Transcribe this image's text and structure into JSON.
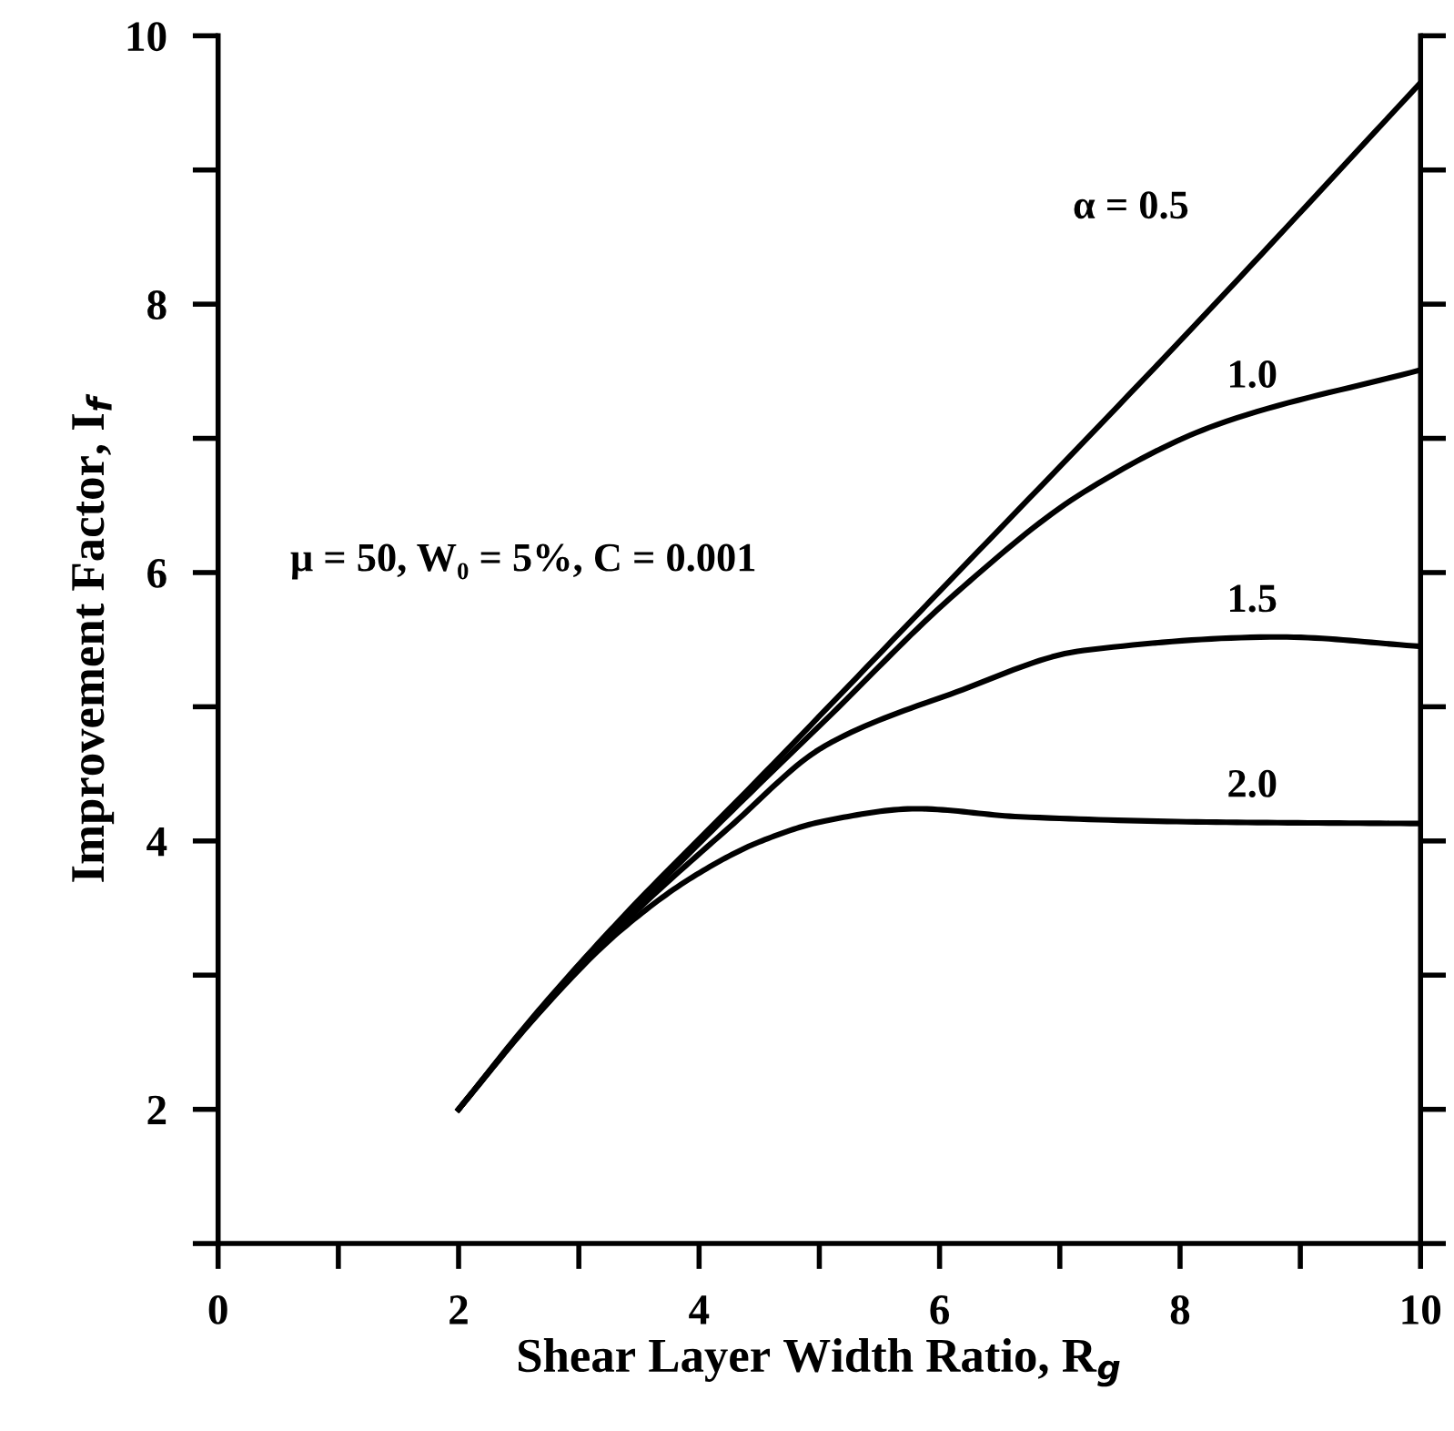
{
  "chart_data": {
    "type": "line",
    "xlabel": "Shear Layer Width Ratio, R$_{g}$",
    "ylabel": "Improvement Factor, I$_{f}$",
    "xlim": [
      0,
      10
    ],
    "ylim": [
      1,
      10
    ],
    "xticks": [
      0,
      {
        "value": 1,
        "label": null
      },
      2,
      {
        "value": 3,
        "label": null
      },
      4,
      {
        "value": 5,
        "label": null
      },
      6,
      {
        "value": 7,
        "label": null
      },
      8,
      {
        "value": 9,
        "label": null
      },
      10
    ],
    "yticks": [
      {
        "value": 1,
        "label": null
      },
      2,
      {
        "value": 3,
        "label": null
      },
      4,
      {
        "value": 5,
        "label": null
      },
      6,
      {
        "value": 7,
        "label": null
      },
      8,
      {
        "value": 9,
        "label": null
      },
      10
    ],
    "grid": false,
    "legend": false,
    "marker": "none",
    "line_style": "solid",
    "series": [
      {
        "name": "α = 0.5",
        "color": "#000000",
        "x": [
          2,
          2.63,
          3.33,
          4.46,
          6,
          8.11,
          10
        ],
        "values": [
          2,
          2.7,
          3.4,
          4.43,
          5.86,
          7.83,
          9.65
        ]
      },
      {
        "name": "1.0",
        "color": "#000000",
        "x": [
          2,
          2.63,
          3.33,
          4.19,
          5.05,
          6.14,
          7.2,
          8.3,
          10
        ],
        "values": [
          2,
          2.69,
          3.37,
          4.15,
          4.9,
          5.85,
          6.6,
          7.1,
          7.51
        ]
      },
      {
        "name": "1.5",
        "color": "#000000",
        "x": [
          2,
          2.63,
          3.33,
          4.25,
          5.05,
          6.14,
          7.2,
          8.83,
          10
        ],
        "values": [
          2,
          2.68,
          3.35,
          4.1,
          4.71,
          5.11,
          5.42,
          5.52,
          5.45
        ]
      },
      {
        "name": "2.0",
        "color": "#000000",
        "x": [
          2,
          2.63,
          3.33,
          3.98,
          4.52,
          5.05,
          5.81,
          6.67,
          8.3,
          10
        ],
        "values": [
          2,
          2.68,
          3.32,
          3.75,
          4.0,
          4.15,
          4.24,
          4.18,
          4.14,
          4.13
        ]
      }
    ],
    "annotations": [
      "μ = 50, W₀ = 5%, C = 0.001"
    ]
  }
}
